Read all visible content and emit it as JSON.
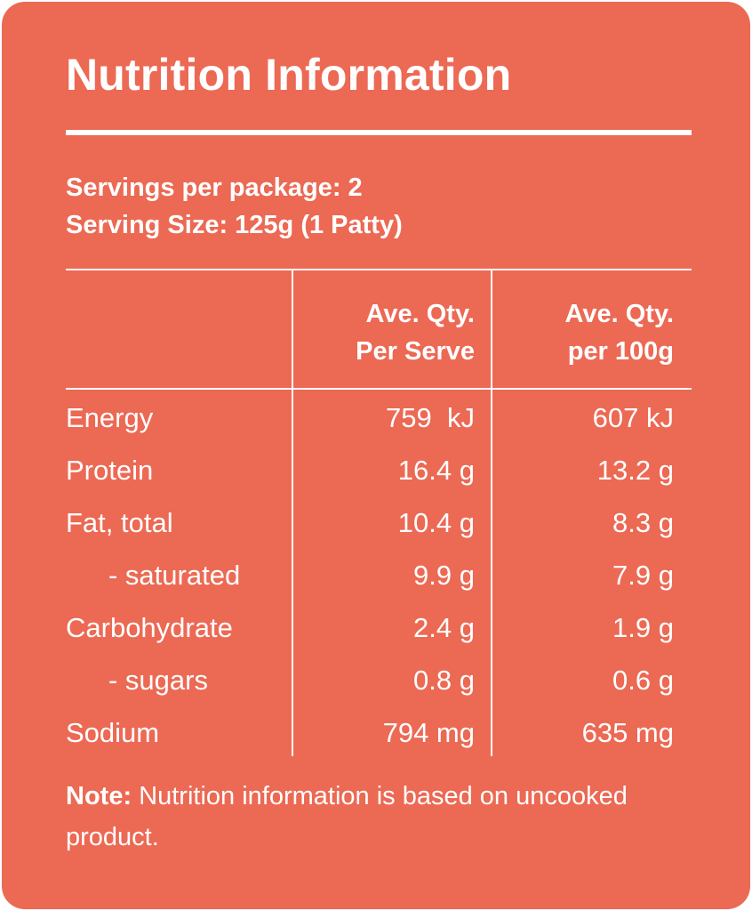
{
  "panel": {
    "title": "Nutrition Information",
    "servings_per_package": "Servings per package: 2",
    "serving_size": "Serving Size: 125g (1 Patty)"
  },
  "table": {
    "headers": {
      "col1_line1": "Ave. Qty.",
      "col1_line2": "Per Serve",
      "col2_line1": "Ave. Qty.",
      "col2_line2": "per 100g"
    },
    "rows": [
      {
        "label": "Energy",
        "per_serve": "759  kJ",
        "per_100g": "607 kJ"
      },
      {
        "label": "Protein",
        "per_serve": "16.4 g",
        "per_100g": "13.2 g"
      },
      {
        "label": "Fat, total",
        "per_serve": "10.4 g",
        "per_100g": "8.3 g"
      },
      {
        "label": "- saturated",
        "per_serve": "9.9 g",
        "per_100g": "7.9 g"
      },
      {
        "label": "Carbohydrate",
        "per_serve": "2.4 g",
        "per_100g": "1.9 g"
      },
      {
        "label": "- sugars",
        "per_serve": "0.8 g",
        "per_100g": "0.6 g"
      },
      {
        "label": "Sodium",
        "per_serve": "794 mg",
        "per_100g": "635 mg"
      }
    ]
  },
  "note": {
    "label": "Note:",
    "text": " Nutrition information is based on uncooked product."
  },
  "colors": {
    "panel_background": "#ec6954",
    "text": "#ffffff"
  }
}
